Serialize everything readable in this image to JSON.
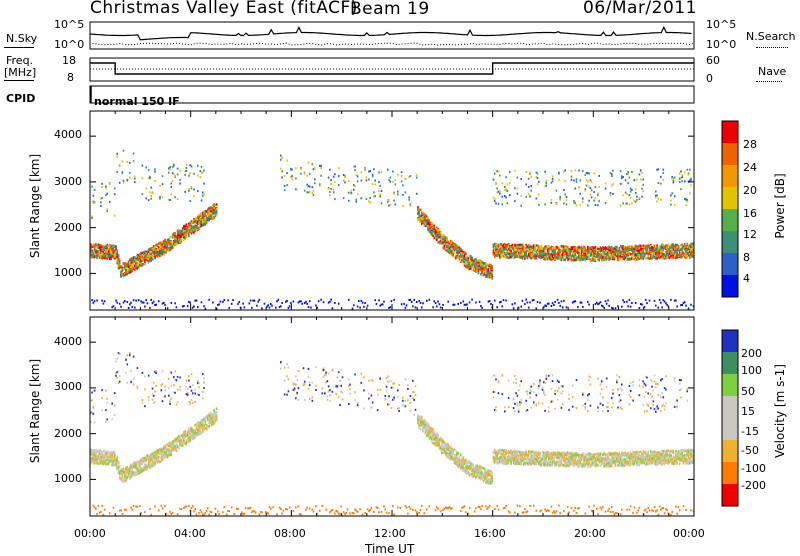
{
  "header": {
    "title": "Christmas Valley East (fitACF)",
    "beam": "Beam 19",
    "date": "06/Mar/2011"
  },
  "top_panel": {
    "left_label": "N.Sky",
    "right_label": "N.Search",
    "left_ticks": [
      "10^5",
      "10^0"
    ],
    "right_ticks": [
      "10^5",
      "10^0"
    ]
  },
  "freq_panel": {
    "left_label_line1": "Freq.",
    "left_label_line2": "[MHz]",
    "right_label": "Nave",
    "left_ticks": [
      "18",
      "8"
    ],
    "right_ticks": [
      "60",
      "0"
    ]
  },
  "cpid": {
    "label": "CPID",
    "value": "normal 150 IF"
  },
  "x_axis": {
    "title": "Time UT",
    "ticks": [
      "00:00",
      "04:00",
      "08:00",
      "12:00",
      "16:00",
      "20:00",
      "00:00"
    ]
  },
  "colors": {
    "power_scale": [
      "#0010e0",
      "#2a60c8",
      "#3c8f78",
      "#54b04a",
      "#e0c400",
      "#f09a00",
      "#f06400",
      "#ee0000"
    ],
    "velocity_scale": [
      "#f00000",
      "#ff7a00",
      "#f0b030",
      "#c8c8c0",
      "#c8c8c0",
      "#7ed040",
      "#3c9060",
      "#2030c0"
    ]
  },
  "chart_data": [
    {
      "type": "heatmap",
      "ylabel": "Slant Range [km]",
      "yticks": [
        1000,
        2000,
        3000,
        4000
      ],
      "ylim": [
        200,
        4550
      ],
      "xlim_hours": [
        0,
        24
      ],
      "colorbar_label": "Power [dB]",
      "colorbar_ticks": [
        "4",
        "8",
        "12",
        "16",
        "20",
        "24",
        "28"
      ],
      "features": [
        {
          "name": "ground-scatter-band",
          "t": [
            0,
            1,
            1.2,
            2,
            3,
            4,
            5
          ],
          "range": [
            1500,
            1450,
            1050,
            1300,
            1600,
            2000,
            2400
          ]
        },
        {
          "name": "descending-echo-band",
          "t": [
            13,
            14,
            15,
            16
          ],
          "range": [
            2300,
            1700,
            1250,
            1000
          ]
        },
        {
          "name": "late-band",
          "t": [
            16,
            18,
            20,
            22,
            24
          ],
          "range": [
            1500,
            1450,
            1420,
            1460,
            1500
          ]
        }
      ]
    },
    {
      "type": "heatmap",
      "ylabel": "Slant Range [km]",
      "yticks": [
        1000,
        2000,
        3000,
        4000
      ],
      "ylim": [
        200,
        4550
      ],
      "xlim_hours": [
        0,
        24
      ],
      "colorbar_label": "Velocity [m s-1]",
      "colorbar_ticks": [
        "200",
        "100",
        "50",
        "15",
        "-15",
        "-50",
        "-100",
        "-200"
      ]
    }
  ]
}
